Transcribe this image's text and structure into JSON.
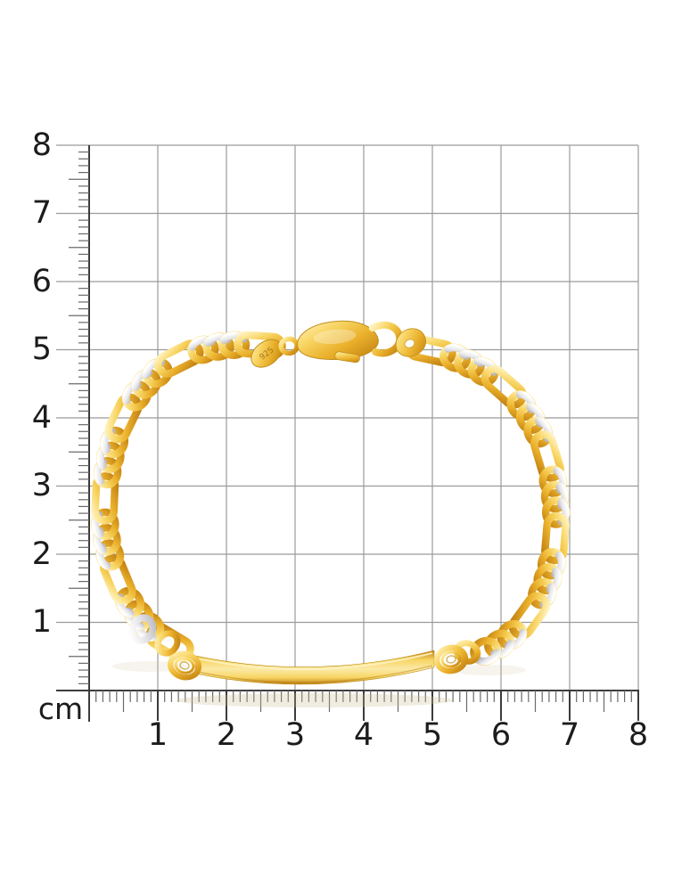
{
  "image": {
    "subject": "Two-tone yellow gold figaro chain ID bracelet lying on a centimeter measurement grid",
    "hallmark_stamp": "925"
  },
  "ruler": {
    "unit_label": "cm",
    "x_tick_labels": [
      "1",
      "2",
      "3",
      "4",
      "5",
      "6",
      "7",
      "8"
    ],
    "y_tick_labels": [
      "8",
      "7",
      "6",
      "5",
      "4",
      "3",
      "2",
      "1"
    ]
  },
  "colors": {
    "background": "#ffffff",
    "grid_line": "#9b9b9b",
    "axis_line": "#3c3c3c",
    "minor_tick": "#6a6a6a",
    "label_text": "#1c1c1c",
    "gold_highlight": "#fff2bd",
    "gold_light": "#f8d564",
    "gold_mid": "#eab02b",
    "gold_shadow": "#c07f12",
    "white_gold_light": "#ffffff",
    "white_gold": "#e9e9ec",
    "white_gold_shadow": "#b9b9c1",
    "plate_center": "#fbe9a6"
  }
}
